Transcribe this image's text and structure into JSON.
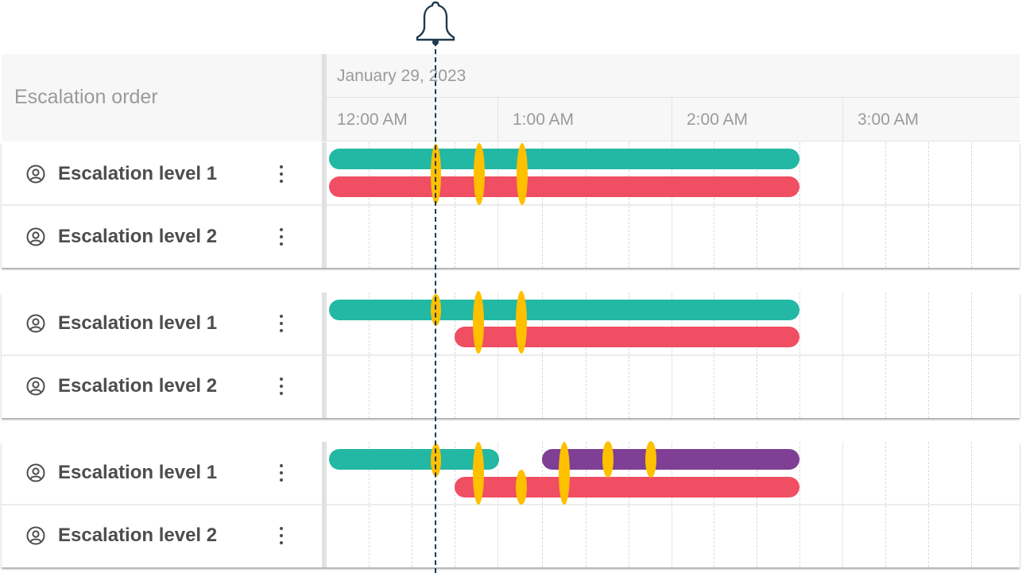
{
  "timeline": {
    "header": {
      "title": "Escalation order",
      "date": "January 29, 2023",
      "hours": [
        "12:00 AM",
        "1:00 AM",
        "2:00 AM",
        "3:00 AM"
      ]
    },
    "now_indicator": {
      "icon": "bell-icon"
    },
    "groups": [
      {
        "rows": [
          {
            "label": "Escalation level 1",
            "icon": "user-circle-icon"
          },
          {
            "label": "Escalation level 2",
            "icon": "user-circle-icon"
          }
        ]
      },
      {
        "rows": [
          {
            "label": "Escalation level 1",
            "icon": "user-circle-icon"
          },
          {
            "label": "Escalation level 2",
            "icon": "user-circle-icon"
          }
        ]
      },
      {
        "rows": [
          {
            "label": "Escalation level 1",
            "icon": "user-circle-icon"
          },
          {
            "label": "Escalation level 2",
            "icon": "user-circle-icon"
          }
        ]
      }
    ]
  },
  "colors": {
    "teal": "#22b8a4",
    "red": "#f04e62",
    "purple": "#7e3f94",
    "marker": "#ffc000",
    "now_line": "#1f3a4d"
  }
}
